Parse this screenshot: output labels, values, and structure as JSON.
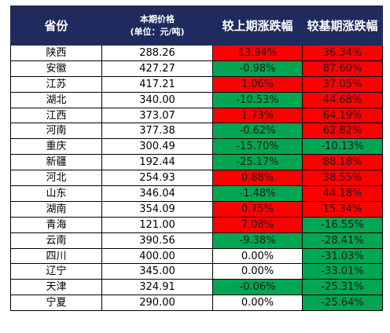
{
  "colors": {
    "header_bg": "#1f2b5e",
    "header_text": "#ffffff",
    "increase": "#ff0000",
    "decrease": "#00a651",
    "flat": "#ffffff"
  },
  "table": {
    "headers": {
      "province": "省份",
      "price_line1": "本期价格",
      "price_line2": "(单位：元/吨)",
      "prev_change": "较上期涨跌幅",
      "base_change": "较基期涨跌幅"
    },
    "rows": [
      {
        "province": "陕西",
        "price": "288.26",
        "prev_change": "13.94%",
        "prev_dir": "up",
        "base_change": "36.34%",
        "base_dir": "up"
      },
      {
        "province": "安徽",
        "price": "427.27",
        "prev_change": "-0.98%",
        "prev_dir": "down",
        "base_change": "87.60%",
        "base_dir": "up"
      },
      {
        "province": "江苏",
        "price": "417.21",
        "prev_change": "1.06%",
        "prev_dir": "up",
        "base_change": "37.05%",
        "base_dir": "up"
      },
      {
        "province": "湖北",
        "price": "340.00",
        "prev_change": "-10.53%",
        "prev_dir": "down",
        "base_change": "44.68%",
        "base_dir": "up"
      },
      {
        "province": "江西",
        "price": "373.07",
        "prev_change": "1.73%",
        "prev_dir": "up",
        "base_change": "64.19%",
        "base_dir": "up"
      },
      {
        "province": "河南",
        "price": "377.38",
        "prev_change": "-0.62%",
        "prev_dir": "down",
        "base_change": "62.82%",
        "base_dir": "up"
      },
      {
        "province": "重庆",
        "price": "300.49",
        "prev_change": "-15.70%",
        "prev_dir": "down",
        "base_change": "-10.13%",
        "base_dir": "down"
      },
      {
        "province": "新疆",
        "price": "192.44",
        "prev_change": "-25.17%",
        "prev_dir": "down",
        "base_change": "88.18%",
        "base_dir": "up"
      },
      {
        "province": "河北",
        "price": "254.93",
        "prev_change": "0.88%",
        "prev_dir": "up",
        "base_change": "38.55%",
        "base_dir": "up"
      },
      {
        "province": "山东",
        "price": "346.04",
        "prev_change": "-1.48%",
        "prev_dir": "down",
        "base_change": "44.18%",
        "base_dir": "up"
      },
      {
        "province": "湖南",
        "price": "354.09",
        "prev_change": "0.75%",
        "prev_dir": "up",
        "base_change": "15.34%",
        "base_dir": "up"
      },
      {
        "province": "青海",
        "price": "121.00",
        "prev_change": "7.08%",
        "prev_dir": "up",
        "base_change": "-16.55%",
        "base_dir": "down"
      },
      {
        "province": "云南",
        "price": "390.56",
        "prev_change": "-9.38%",
        "prev_dir": "down",
        "base_change": "-28.41%",
        "base_dir": "down"
      },
      {
        "province": "四川",
        "price": "400.00",
        "prev_change": "0.00%",
        "prev_dir": "flat",
        "base_change": "-31.03%",
        "base_dir": "down"
      },
      {
        "province": "辽宁",
        "price": "345.00",
        "prev_change": "0.00%",
        "prev_dir": "flat",
        "base_change": "-33.01%",
        "base_dir": "down"
      },
      {
        "province": "天津",
        "price": "324.91",
        "prev_change": "-0.06%",
        "prev_dir": "down",
        "base_change": "-25.31%",
        "base_dir": "down"
      },
      {
        "province": "宁夏",
        "price": "290.00",
        "prev_change": "0.00%",
        "prev_dir": "flat",
        "base_change": "-25.64%",
        "base_dir": "down"
      }
    ]
  }
}
